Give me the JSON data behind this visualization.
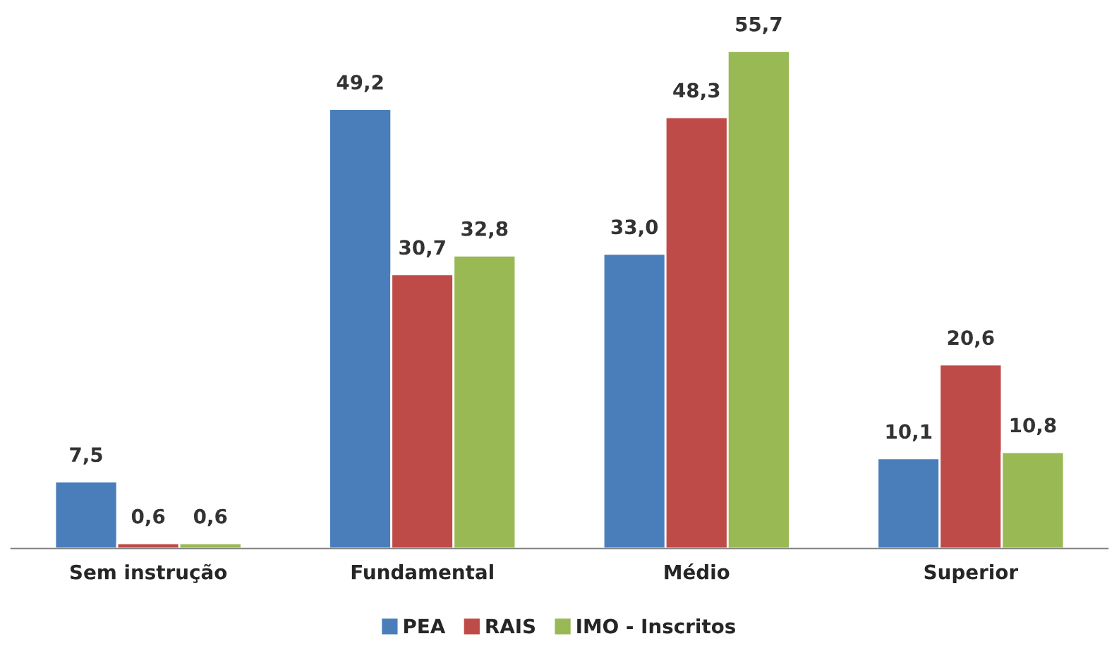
{
  "chart_data": {
    "type": "bar",
    "categories": [
      "Sem instrução",
      "Fundamental",
      "Médio",
      "Superior"
    ],
    "series": [
      {
        "name": "PEA",
        "color": "#4a7ebb",
        "values": [
          7.5,
          49.2,
          33.0,
          10.1
        ],
        "value_labels": [
          "7,5",
          "49,2",
          "33,0",
          "10,1"
        ]
      },
      {
        "name": "RAIS",
        "color": "#be4b48",
        "values": [
          0.6,
          30.7,
          48.3,
          20.6
        ],
        "value_labels": [
          "0,6",
          "30,7",
          "48,3",
          "20,6"
        ]
      },
      {
        "name": "IMO - Inscritos",
        "color": "#98b954",
        "values": [
          0.6,
          32.8,
          55.7,
          10.8
        ],
        "value_labels": [
          "0,6",
          "32,8",
          "55,7",
          "10,8"
        ]
      }
    ],
    "legend": "bottom",
    "grid": false,
    "tick_labels": "x"
  }
}
